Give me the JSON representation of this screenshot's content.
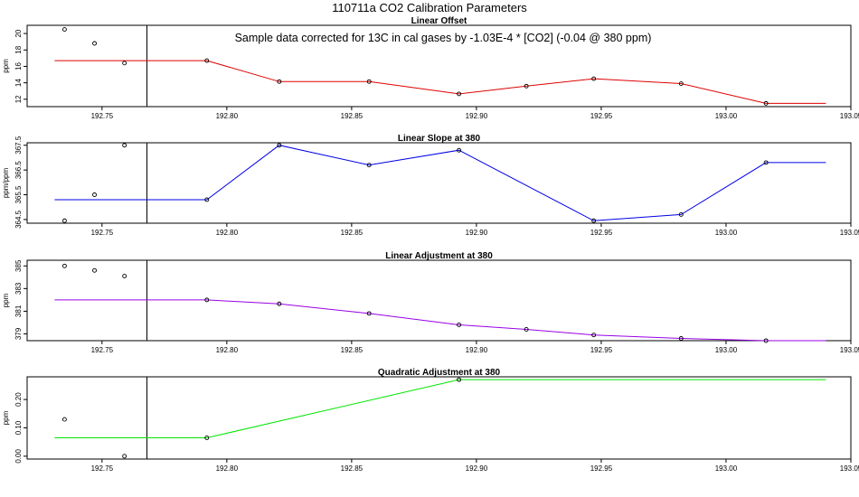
{
  "title": "110711a   CO2 Calibration Parameters",
  "colors": {
    "axis": "#000000",
    "point": "#000000",
    "ref_line": "#000000"
  },
  "reference_line_x": 192.768,
  "chart_data": [
    {
      "type": "line",
      "title": "Linear Offset",
      "ylabel": "ppm",
      "annotation": "Sample data corrected for 13C in cal gases by -1.03E-4 * [CO2] (-0.04 @ 380 ppm)",
      "line_color": "#e00000",
      "xlim": [
        192.72,
        193.05
      ],
      "ylim": [
        11.1,
        21.0
      ],
      "xticks": [
        192.75,
        192.8,
        192.85,
        192.9,
        192.95,
        193.0,
        193.05
      ],
      "xtick_labels": [
        "192.75",
        "192.80",
        "192.85",
        "192.90",
        "192.95",
        "193.00",
        "193.05"
      ],
      "yticks": [
        12,
        14,
        16,
        18,
        20
      ],
      "ytick_labels": [
        "12",
        "14",
        "16",
        "18",
        "20"
      ],
      "series": [
        {
          "x": [
            192.731,
            192.792,
            192.821,
            192.857,
            192.893,
            192.92,
            192.947,
            192.982,
            193.016,
            193.04
          ],
          "y": [
            16.7,
            16.7,
            14.15,
            14.15,
            12.65,
            13.6,
            14.5,
            13.9,
            11.5,
            11.5
          ]
        }
      ],
      "cal_points": {
        "x": [
          192.735,
          192.747,
          192.759
        ],
        "y": [
          20.5,
          18.8,
          16.4
        ]
      }
    },
    {
      "type": "line",
      "title": "Linear Slope at 380",
      "ylabel": "ppm/ppm",
      "line_color": "#0000e6",
      "xlim": [
        192.72,
        193.05
      ],
      "ylim": [
        364.35,
        367.6
      ],
      "xticks": [
        192.75,
        192.8,
        192.85,
        192.9,
        192.95,
        193.0,
        193.05
      ],
      "xtick_labels": [
        "192.75",
        "192.80",
        "192.85",
        "192.90",
        "192.95",
        "193.00",
        "193.05"
      ],
      "yticks": [
        364.5,
        365.5,
        366.5,
        367.5
      ],
      "ytick_labels": [
        "364.5",
        "365.5",
        "366.5",
        "367.5"
      ],
      "series": [
        {
          "x": [
            192.731,
            192.792,
            192.821,
            192.857,
            192.893,
            192.947,
            192.982,
            193.016,
            193.04
          ],
          "y": [
            365.3,
            365.3,
            367.5,
            366.7,
            367.3,
            364.45,
            364.7,
            366.8,
            366.8
          ]
        }
      ],
      "cal_points": {
        "x": [
          192.735,
          192.747,
          192.759
        ],
        "y": [
          364.45,
          365.5,
          367.5
        ]
      }
    },
    {
      "type": "line",
      "title": "Linear Adjustment at 380",
      "ylabel": "ppm",
      "line_color": "#9900e6",
      "xlim": [
        192.72,
        193.05
      ],
      "ylim": [
        378.4,
        385.5
      ],
      "xticks": [
        192.75,
        192.8,
        192.85,
        192.9,
        192.95,
        193.0,
        193.05
      ],
      "xtick_labels": [
        "192.75",
        "192.80",
        "192.85",
        "192.90",
        "192.95",
        "193.00",
        "193.05"
      ],
      "yticks": [
        379,
        381,
        383,
        385
      ],
      "ytick_labels": [
        "379",
        "381",
        "383",
        "385"
      ],
      "series": [
        {
          "x": [
            192.731,
            192.792,
            192.821,
            192.857,
            192.893,
            192.92,
            192.947,
            192.982,
            193.016,
            193.04
          ],
          "y": [
            382.0,
            382.0,
            381.65,
            380.8,
            379.8,
            379.4,
            378.9,
            378.6,
            378.4,
            378.4
          ]
        }
      ],
      "cal_points": {
        "x": [
          192.735,
          192.747,
          192.759
        ],
        "y": [
          385.0,
          384.6,
          384.1
        ]
      }
    },
    {
      "type": "line",
      "title": "Quadratic Adjustment at 380",
      "ylabel": "ppm",
      "line_color": "#00e600",
      "xlim": [
        192.72,
        193.05
      ],
      "ylim": [
        -0.01,
        0.28
      ],
      "xticks": [
        192.75,
        192.8,
        192.85,
        192.9,
        192.95,
        193.0,
        193.05
      ],
      "xtick_labels": [
        "192.75",
        "192.80",
        "192.85",
        "192.90",
        "192.95",
        "193.00",
        "193.05"
      ],
      "yticks": [
        0.0,
        0.1,
        0.2
      ],
      "ytick_labels": [
        "0.00",
        "0.10",
        "0.20"
      ],
      "series": [
        {
          "x": [
            192.731,
            192.792,
            192.893,
            193.04
          ],
          "y": [
            0.065,
            0.065,
            0.27,
            0.27
          ]
        }
      ],
      "cal_points": {
        "x": [
          192.735,
          192.759
        ],
        "y": [
          0.13,
          0.0
        ]
      }
    }
  ]
}
